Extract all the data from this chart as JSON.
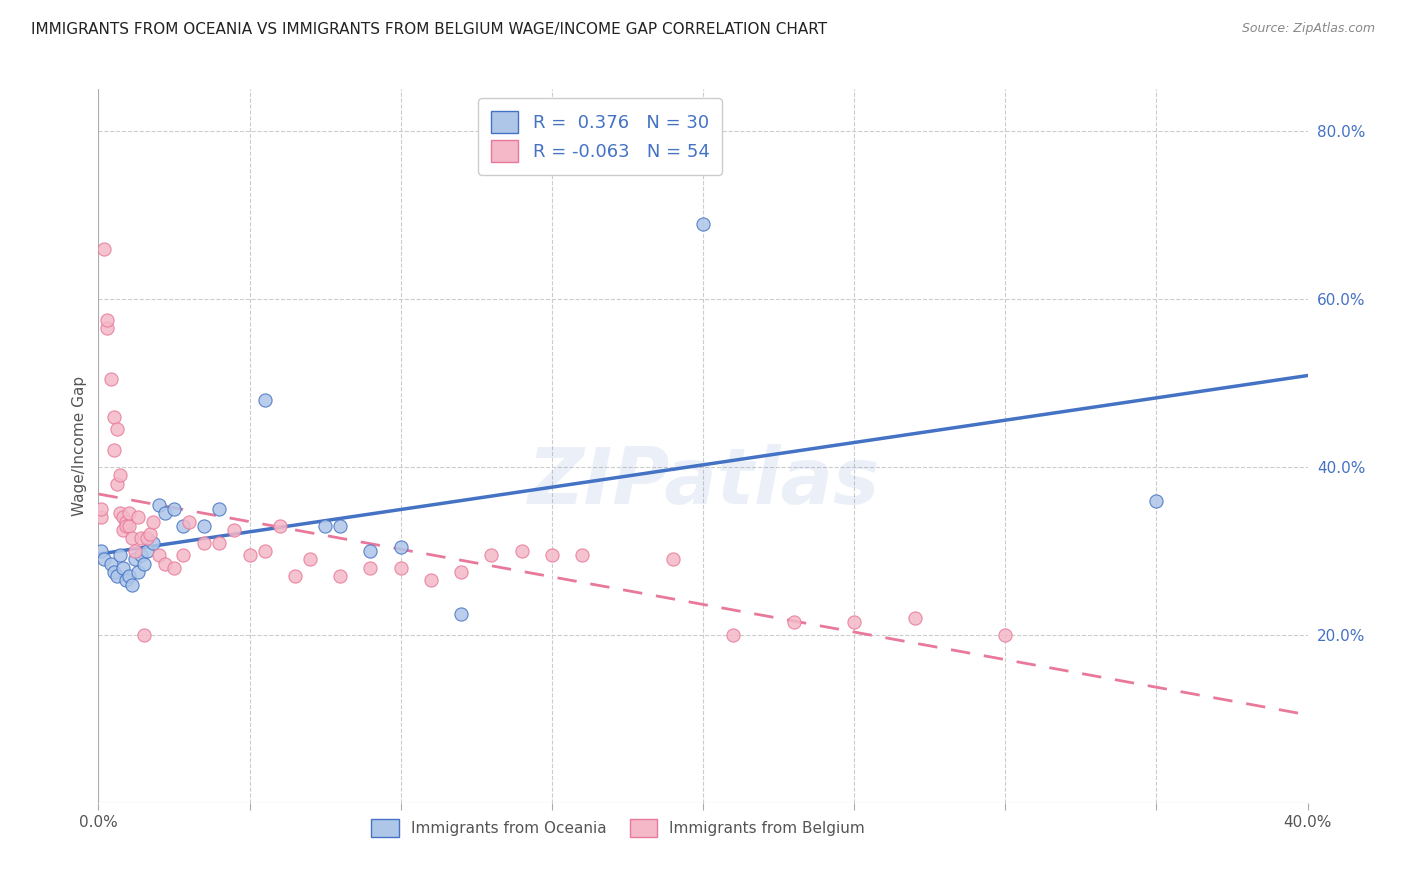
{
  "title": "IMMIGRANTS FROM OCEANIA VS IMMIGRANTS FROM BELGIUM WAGE/INCOME GAP CORRELATION CHART",
  "source": "Source: ZipAtlas.com",
  "ylabel": "Wage/Income Gap",
  "x_min": 0.0,
  "x_max": 0.4,
  "y_min": 0.0,
  "y_max": 0.85,
  "oceania_color": "#aec6e8",
  "belgium_color": "#f4b8c8",
  "oceania_line_color": "#4472c4",
  "belgium_line_color": "#e8799a",
  "legend_R_oceania": "0.376",
  "legend_N_oceania": "30",
  "legend_R_belgium": "-0.063",
  "legend_N_belgium": "54",
  "watermark": "ZIPatlas",
  "oceania_scatter_x": [
    0.001,
    0.002,
    0.004,
    0.005,
    0.006,
    0.007,
    0.008,
    0.009,
    0.01,
    0.011,
    0.012,
    0.013,
    0.014,
    0.015,
    0.016,
    0.018,
    0.02,
    0.022,
    0.025,
    0.028,
    0.035,
    0.04,
    0.055,
    0.075,
    0.08,
    0.09,
    0.1,
    0.12,
    0.2,
    0.35
  ],
  "oceania_scatter_y": [
    0.3,
    0.29,
    0.285,
    0.275,
    0.27,
    0.295,
    0.28,
    0.265,
    0.27,
    0.26,
    0.29,
    0.275,
    0.295,
    0.285,
    0.3,
    0.31,
    0.355,
    0.345,
    0.35,
    0.33,
    0.33,
    0.35,
    0.48,
    0.33,
    0.33,
    0.3,
    0.305,
    0.225,
    0.69,
    0.36
  ],
  "belgium_scatter_x": [
    0.001,
    0.001,
    0.002,
    0.003,
    0.003,
    0.004,
    0.005,
    0.005,
    0.006,
    0.006,
    0.007,
    0.007,
    0.008,
    0.008,
    0.009,
    0.009,
    0.01,
    0.01,
    0.011,
    0.012,
    0.013,
    0.014,
    0.015,
    0.016,
    0.017,
    0.018,
    0.02,
    0.022,
    0.025,
    0.028,
    0.03,
    0.035,
    0.04,
    0.045,
    0.05,
    0.055,
    0.06,
    0.065,
    0.07,
    0.08,
    0.09,
    0.1,
    0.11,
    0.12,
    0.13,
    0.14,
    0.15,
    0.16,
    0.19,
    0.21,
    0.23,
    0.25,
    0.27,
    0.3
  ],
  "belgium_scatter_y": [
    0.34,
    0.35,
    0.66,
    0.565,
    0.575,
    0.505,
    0.46,
    0.42,
    0.38,
    0.445,
    0.345,
    0.39,
    0.325,
    0.34,
    0.335,
    0.33,
    0.33,
    0.345,
    0.315,
    0.3,
    0.34,
    0.315,
    0.2,
    0.315,
    0.32,
    0.335,
    0.295,
    0.285,
    0.28,
    0.295,
    0.335,
    0.31,
    0.31,
    0.325,
    0.295,
    0.3,
    0.33,
    0.27,
    0.29,
    0.27,
    0.28,
    0.28,
    0.265,
    0.275,
    0.295,
    0.3,
    0.295,
    0.295,
    0.29,
    0.2,
    0.215,
    0.215,
    0.22,
    0.2
  ]
}
